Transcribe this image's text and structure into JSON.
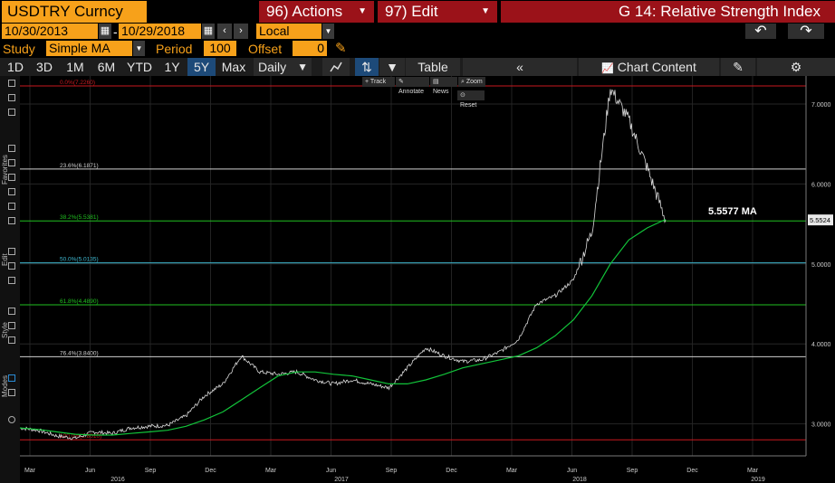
{
  "header": {
    "ticker": "USDTRY Curncy",
    "actions_label": "96) Actions",
    "edit_label": "97) Edit",
    "title": "G 14: Relative Strength Index"
  },
  "dates": {
    "start": "10/30/2013",
    "separator": "-",
    "end": "10/29/2018",
    "currency": "Local CCY"
  },
  "study": {
    "label": "Study",
    "value": "Simple MA",
    "period_label": "Period",
    "period_value": "100",
    "offset_label": "Offset",
    "offset_value": "0"
  },
  "toolbar": {
    "ranges": [
      "1D",
      "3D",
      "1M",
      "6M",
      "YTD",
      "1Y",
      "5Y",
      "Max"
    ],
    "selected_range": "5Y",
    "frequency": "Daily",
    "table_label": "Table",
    "chart_content_label": "Chart Content"
  },
  "floating_toolbar": {
    "track": "Track",
    "annotate": "Annotate",
    "news": "News",
    "zoom": "Zoom",
    "reset": "Reset"
  },
  "rail_labels": {
    "favorites": "Favorites",
    "edit": "Edit",
    "style": "Style",
    "modes": "Modes"
  },
  "colors": {
    "price": "#d9d9d9",
    "ma": "#12c43a",
    "fib_red": "#c8181e",
    "fib_white": "#d0d0d0",
    "fib_green": "#20c020",
    "fib_cyan": "#3fb8d0",
    "accent_orange": "#f7a11a",
    "header_red": "#9b1219"
  },
  "chart_data": {
    "type": "line",
    "y_ticks": [
      "7.0000",
      "6.0000",
      "5.0000",
      "4.0000",
      "3.0000"
    ],
    "ylim": [
      2.6,
      7.35
    ],
    "x_month_labels": [
      "Mar",
      "Jun",
      "Sep",
      "Dec",
      "Mar",
      "Jun",
      "Sep",
      "Dec",
      "Mar",
      "Jun",
      "Sep",
      "Dec",
      "Mar"
    ],
    "x_year_labels": [
      "2016",
      "2017",
      "2018",
      "2019"
    ],
    "current_price_label": "5.5524",
    "ma_annotation": "5.5577 MA",
    "fib_levels": [
      {
        "label": "0.0%(7.2260)",
        "value": 7.226,
        "color": "red"
      },
      {
        "label": "23.6%(6.1871)",
        "value": 6.1871,
        "color": "white"
      },
      {
        "label": "38.2%(5.5381)",
        "value": 5.5381,
        "color": "green"
      },
      {
        "label": "50.0%(5.0135)",
        "value": 5.0135,
        "color": "cyan"
      },
      {
        "label": "61.8%(4.4890)",
        "value": 4.489,
        "color": "green"
      },
      {
        "label": "76.4%(3.8400)",
        "value": 3.84,
        "color": "white"
      },
      {
        "label": "100.0%(2.8010)",
        "value": 2.801,
        "color": "red"
      }
    ],
    "series": [
      {
        "name": "USDTRY Curncy",
        "x": [
          "2016-01",
          "2016-02",
          "2016-03",
          "2016-04",
          "2016-05",
          "2016-06",
          "2016-07",
          "2016-08",
          "2016-09",
          "2016-10",
          "2016-11",
          "2016-12",
          "2017-01",
          "2017-02",
          "2017-03",
          "2017-04",
          "2017-05",
          "2017-06",
          "2017-07",
          "2017-08",
          "2017-09",
          "2017-10",
          "2017-11",
          "2017-12",
          "2018-01",
          "2018-02",
          "2018-03",
          "2018-04",
          "2018-05",
          "2018-06",
          "2018-07",
          "2018-08",
          "2018-08b",
          "2018-09",
          "2018-09b",
          "2018-10"
        ],
        "values": [
          2.95,
          2.92,
          2.85,
          2.82,
          2.9,
          2.88,
          2.95,
          2.97,
          2.98,
          3.1,
          3.35,
          3.5,
          3.85,
          3.65,
          3.62,
          3.65,
          3.55,
          3.5,
          3.55,
          3.5,
          3.45,
          3.7,
          3.95,
          3.85,
          3.78,
          3.8,
          3.9,
          4.05,
          4.5,
          4.6,
          4.8,
          5.4,
          7.2,
          6.8,
          6.2,
          5.55
        ]
      },
      {
        "name": "MA",
        "values": [
          2.95,
          2.93,
          2.9,
          2.87,
          2.86,
          2.86,
          2.88,
          2.9,
          2.92,
          2.97,
          3.05,
          3.15,
          3.3,
          3.45,
          3.6,
          3.65,
          3.65,
          3.62,
          3.6,
          3.55,
          3.5,
          3.5,
          3.55,
          3.62,
          3.7,
          3.75,
          3.8,
          3.85,
          3.95,
          4.1,
          4.3,
          4.6,
          5.0,
          5.3,
          5.45,
          5.5577
        ]
      }
    ]
  }
}
